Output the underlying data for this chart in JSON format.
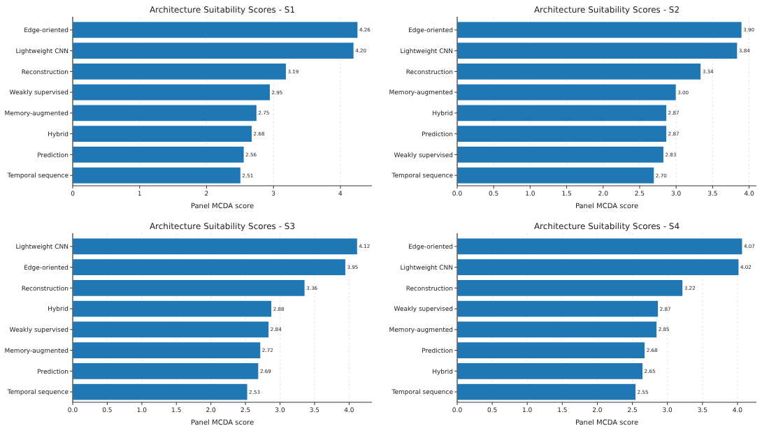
{
  "chart_data": [
    {
      "type": "bar",
      "orientation": "horizontal",
      "title": "Architecture Suitability Scores - S1",
      "xlabel": "Panel MCDA score",
      "categories": [
        "Edge-oriented",
        "Lightweight CNN",
        "Reconstruction",
        "Weakly supervised",
        "Memory-augmented",
        "Hybrid",
        "Prediction",
        "Temporal sequence"
      ],
      "values": [
        4.26,
        4.2,
        3.19,
        2.95,
        2.75,
        2.68,
        2.56,
        2.51
      ],
      "value_labels": [
        "4.26",
        "4.20",
        "3.19",
        "2.95",
        "2.75",
        "2.68",
        "2.56",
        "2.51"
      ],
      "color": "#1f77b4",
      "xlim": [
        0,
        4.47
      ],
      "xticks": [
        0,
        1,
        2,
        3,
        4
      ],
      "grid": "x"
    },
    {
      "type": "bar",
      "orientation": "horizontal",
      "title": "Architecture Suitability Scores - S2",
      "xlabel": "Panel MCDA score",
      "categories": [
        "Edge-oriented",
        "Lightweight CNN",
        "Reconstruction",
        "Memory-augmented",
        "Hybrid",
        "Prediction",
        "Weakly supervised",
        "Temporal sequence"
      ],
      "values": [
        3.9,
        3.84,
        3.34,
        3.0,
        2.87,
        2.87,
        2.83,
        2.7
      ],
      "value_labels": [
        "3.90",
        "3.84",
        "3.34",
        "3.00",
        "2.87",
        "2.87",
        "2.83",
        "2.70"
      ],
      "color": "#1f77b4",
      "xlim": [
        0,
        4.1
      ],
      "xticks": [
        {
          "value": 0,
          "label": "0.0"
        },
        0.5,
        {
          "value": 1,
          "label": "1.0"
        },
        1.5,
        {
          "value": 2,
          "label": "2.0"
        },
        2.5,
        {
          "value": 3,
          "label": "3.0"
        },
        3.5,
        {
          "value": 4,
          "label": "4.0"
        }
      ],
      "grid": "x"
    },
    {
      "type": "bar",
      "orientation": "horizontal",
      "title": "Architecture Suitability Scores - S3",
      "xlabel": "Panel MCDA score",
      "categories": [
        "Lightweight CNN",
        "Edge-oriented",
        "Reconstruction",
        "Hybrid",
        "Weakly supervised",
        "Memory-augmented",
        "Prediction",
        "Temporal sequence"
      ],
      "values": [
        4.12,
        3.95,
        3.36,
        2.88,
        2.84,
        2.72,
        2.69,
        2.53
      ],
      "value_labels": [
        "4.12",
        "3.95",
        "3.36",
        "2.88",
        "2.84",
        "2.72",
        "2.69",
        "2.53"
      ],
      "color": "#1f77b4",
      "xlim": [
        0,
        4.33
      ],
      "xticks": [
        {
          "value": 0,
          "label": "0.0"
        },
        0.5,
        {
          "value": 1,
          "label": "1.0"
        },
        1.5,
        {
          "value": 2,
          "label": "2.0"
        },
        2.5,
        {
          "value": 3,
          "label": "3.0"
        },
        3.5,
        {
          "value": 4,
          "label": "4.0"
        }
      ],
      "grid": "x"
    },
    {
      "type": "bar",
      "orientation": "horizontal",
      "title": "Architecture Suitability Scores - S4",
      "xlabel": "Panel MCDA score",
      "categories": [
        "Edge-oriented",
        "Lightweight CNN",
        "Reconstruction",
        "Weakly supervised",
        "Memory-augmented",
        "Prediction",
        "Hybrid",
        "Temporal sequence"
      ],
      "values": [
        4.07,
        4.02,
        3.22,
        2.87,
        2.85,
        2.68,
        2.65,
        2.55
      ],
      "value_labels": [
        "4.07",
        "4.02",
        "3.22",
        "2.87",
        "2.85",
        "2.68",
        "2.65",
        "2.55"
      ],
      "color": "#1f77b4",
      "xlim": [
        0,
        4.27
      ],
      "xticks": [
        {
          "value": 0,
          "label": "0.0"
        },
        0.5,
        {
          "value": 1,
          "label": "1.0"
        },
        1.5,
        {
          "value": 2,
          "label": "2.0"
        },
        2.5,
        {
          "value": 3,
          "label": "3.0"
        },
        3.5,
        {
          "value": 4,
          "label": "4.0"
        }
      ],
      "grid": "x"
    }
  ]
}
